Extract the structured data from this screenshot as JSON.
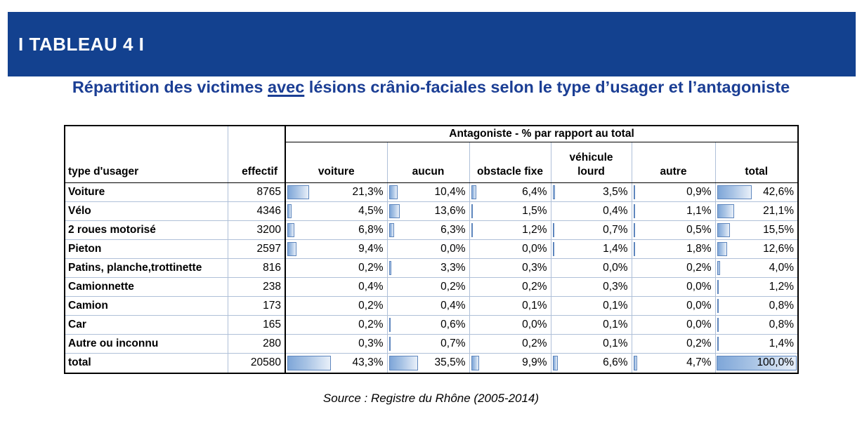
{
  "banner": {
    "label": "I TABLEAU 4 I"
  },
  "title": {
    "part1": "Répartition des victimes ",
    "underline": "avec",
    "part2": " lésions crânio-faciales selon le type d’usager et l’antagoniste"
  },
  "colors": {
    "banner_bg": "#13418f",
    "title_text": "#1b3e94",
    "bar_border": "#5e86bd",
    "bar_fill_start": "#7ea6d8",
    "bar_fill_end": "#e9f0f9",
    "gridline": "#afc0d8"
  },
  "table": {
    "group_header": "Antagoniste - % par rapport au total",
    "user_col_header": "type d'usager",
    "effectif_col_header": "effectif",
    "antagonist_headers": [
      {
        "label": "voiture",
        "slug": "voiture"
      },
      {
        "label": "aucun",
        "slug": "aucun"
      },
      {
        "label": "obstacle fixe",
        "slug": "obstacle-fixe"
      },
      {
        "label": "véhicule\nlourd",
        "slug": "vehicule-lourd"
      },
      {
        "label": "autre",
        "slug": "autre"
      },
      {
        "label": "total",
        "slug": "total"
      }
    ],
    "rows": [
      {
        "label": "Voiture",
        "effectif": "8765",
        "pcts": [
          "21,3%",
          "10,4%",
          "6,4%",
          "3,5%",
          "0,9%",
          "42,6%"
        ],
        "values": [
          21.3,
          10.4,
          6.4,
          3.5,
          0.9,
          42.6
        ],
        "total": false
      },
      {
        "label": "Vélo",
        "effectif": "4346",
        "pcts": [
          "4,5%",
          "13,6%",
          "1,5%",
          "0,4%",
          "1,1%",
          "21,1%"
        ],
        "values": [
          4.5,
          13.6,
          1.5,
          0.4,
          1.1,
          21.1
        ],
        "total": false
      },
      {
        "label": "2 roues motorisé",
        "effectif": "3200",
        "pcts": [
          "6,8%",
          "6,3%",
          "1,2%",
          "0,7%",
          "0,5%",
          "15,5%"
        ],
        "values": [
          6.8,
          6.3,
          1.2,
          0.7,
          0.5,
          15.5
        ],
        "total": false
      },
      {
        "label": "Pieton",
        "effectif": "2597",
        "pcts": [
          "9,4%",
          "0,0%",
          "0,0%",
          "1,4%",
          "1,8%",
          "12,6%"
        ],
        "values": [
          9.4,
          0.0,
          0.0,
          1.4,
          1.8,
          12.6
        ],
        "total": false
      },
      {
        "label": "Patins, planche,trottinette",
        "effectif": "816",
        "pcts": [
          "0,2%",
          "3,3%",
          "0,3%",
          "0,0%",
          "0,2%",
          "4,0%"
        ],
        "values": [
          0.2,
          3.3,
          0.3,
          0.0,
          0.2,
          4.0
        ],
        "total": false
      },
      {
        "label": "Camionnette",
        "effectif": "238",
        "pcts": [
          "0,4%",
          "0,2%",
          "0,2%",
          "0,3%",
          "0,0%",
          "1,2%"
        ],
        "values": [
          0.4,
          0.2,
          0.2,
          0.3,
          0.0,
          1.2
        ],
        "total": false
      },
      {
        "label": "Camion",
        "effectif": "173",
        "pcts": [
          "0,2%",
          "0,4%",
          "0,1%",
          "0,1%",
          "0,0%",
          "0,8%"
        ],
        "values": [
          0.2,
          0.4,
          0.1,
          0.1,
          0.0,
          0.8
        ],
        "total": false
      },
      {
        "label": "Car",
        "effectif": "165",
        "pcts": [
          "0,2%",
          "0,6%",
          "0,0%",
          "0,1%",
          "0,0%",
          "0,8%"
        ],
        "values": [
          0.2,
          0.6,
          0.0,
          0.1,
          0.0,
          0.8
        ],
        "total": false
      },
      {
        "label": "Autre ou inconnu",
        "effectif": "280",
        "pcts": [
          "0,3%",
          "0,7%",
          "0,2%",
          "0,1%",
          "0,2%",
          "1,4%"
        ],
        "values": [
          0.3,
          0.7,
          0.2,
          0.1,
          0.2,
          1.4
        ],
        "total": false
      },
      {
        "label": "total",
        "effectif": "20580",
        "pcts": [
          "43,3%",
          "35,5%",
          "9,9%",
          "6,6%",
          "4,7%",
          "100,0%"
        ],
        "values": [
          43.3,
          35.5,
          9.9,
          6.6,
          4.7,
          100.0
        ],
        "total": true
      }
    ]
  },
  "source": "Source : Registre du Rhône (2005-2014)",
  "chart_data": {
    "type": "table",
    "title": "Répartition des victimes avec lésions crânio-faciales selon le type d’usager et l’antagoniste",
    "group_header": "Antagoniste - % par rapport au total",
    "columns": [
      "type d'usager",
      "effectif",
      "voiture",
      "aucun",
      "obstacle fixe",
      "véhicule lourd",
      "autre",
      "total"
    ],
    "unit": "% par rapport au total",
    "rows": [
      [
        "Voiture",
        8765,
        21.3,
        10.4,
        6.4,
        3.5,
        0.9,
        42.6
      ],
      [
        "Vélo",
        4346,
        4.5,
        13.6,
        1.5,
        0.4,
        1.1,
        21.1
      ],
      [
        "2 roues motorisé",
        3200,
        6.8,
        6.3,
        1.2,
        0.7,
        0.5,
        15.5
      ],
      [
        "Pieton",
        2597,
        9.4,
        0.0,
        0.0,
        1.4,
        1.8,
        12.6
      ],
      [
        "Patins, planche,trottinette",
        816,
        0.2,
        3.3,
        0.3,
        0.0,
        0.2,
        4.0
      ],
      [
        "Camionnette",
        238,
        0.4,
        0.2,
        0.2,
        0.3,
        0.0,
        1.2
      ],
      [
        "Camion",
        173,
        0.2,
        0.4,
        0.1,
        0.1,
        0.0,
        0.8
      ],
      [
        "Car",
        165,
        0.2,
        0.6,
        0.0,
        0.1,
        0.0,
        0.8
      ],
      [
        "Autre ou inconnu",
        280,
        0.3,
        0.7,
        0.2,
        0.1,
        0.2,
        1.4
      ],
      [
        "total",
        20580,
        43.3,
        35.5,
        9.9,
        6.6,
        4.7,
        100.0
      ]
    ],
    "source": "Source : Registre du Rhône (2005-2014)"
  }
}
